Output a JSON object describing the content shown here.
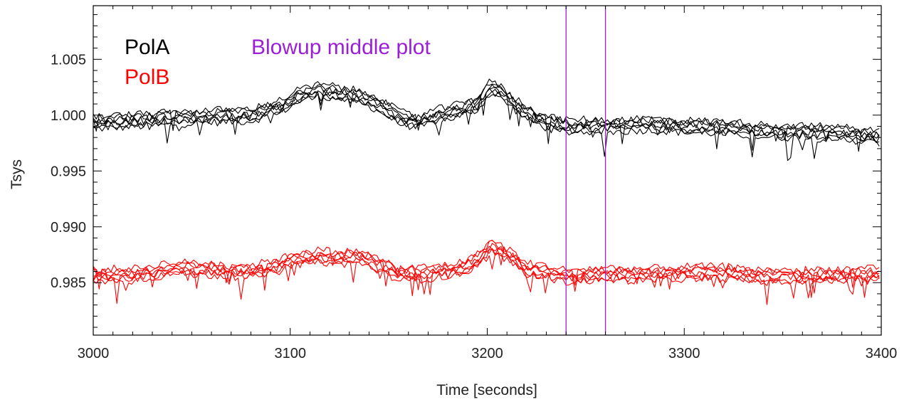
{
  "chart_data": {
    "type": "line",
    "xlabel": "Time [seconds]",
    "ylabel": "Tsys",
    "xlim": [
      3000,
      3400
    ],
    "ylim": [
      0.9803,
      1.0098
    ],
    "x_ticks": [
      3000,
      3100,
      3200,
      3300,
      3400
    ],
    "x_tick_labels": [
      "3000",
      "3100",
      "3200",
      "3300",
      "3400"
    ],
    "y_ticks": [
      0.985,
      0.99,
      0.995,
      1.0,
      1.005
    ],
    "y_tick_labels": [
      "0.985",
      "0.990",
      "0.995",
      "1.000",
      "1.005"
    ],
    "legend": [
      {
        "label": "PolA",
        "color": "#000000"
      },
      {
        "label": "PolB",
        "color": "#ff0000"
      }
    ],
    "annotation": {
      "text": "Blowup middle plot",
      "color": "#9b1fd6"
    },
    "vlines": [
      {
        "x": 3240,
        "color": "#9b1fd6"
      },
      {
        "x": 3260,
        "color": "#9b1fd6"
      }
    ],
    "series": [
      {
        "group": "PolA",
        "color": "#000000",
        "count": 7,
        "x": [
          3000,
          3020,
          3040,
          3060,
          3080,
          3095,
          3105,
          3115,
          3125,
          3135,
          3145,
          3155,
          3165,
          3175,
          3185,
          3195,
          3202,
          3210,
          3220,
          3230,
          3240,
          3250,
          3260,
          3280,
          3300,
          3320,
          3340,
          3360,
          3380,
          3400
        ],
        "values": [
          0.9993,
          0.9995,
          0.9997,
          0.9999,
          1.0,
          1.0008,
          1.0018,
          1.0022,
          1.002,
          1.0016,
          1.001,
          0.9998,
          0.9994,
          1.0,
          1.0004,
          1.001,
          1.0026,
          1.0016,
          1.0002,
          0.9994,
          0.999,
          0.9991,
          0.999,
          0.9992,
          0.999,
          0.9989,
          0.9986,
          0.9985,
          0.9984,
          0.998
        ]
      },
      {
        "group": "PolB",
        "color": "#ff0000",
        "count": 7,
        "x": [
          3000,
          3020,
          3040,
          3060,
          3080,
          3095,
          3105,
          3115,
          3125,
          3135,
          3145,
          3155,
          3165,
          3175,
          3185,
          3195,
          3202,
          3210,
          3220,
          3230,
          3240,
          3250,
          3260,
          3280,
          3300,
          3320,
          3340,
          3360,
          3380,
          3400
        ],
        "values": [
          0.9857,
          0.9857,
          0.9863,
          0.9862,
          0.986,
          0.9866,
          0.9872,
          0.9874,
          0.9872,
          0.9873,
          0.9866,
          0.9858,
          0.9858,
          0.986,
          0.9862,
          0.987,
          0.9882,
          0.9876,
          0.9862,
          0.986,
          0.9856,
          0.9857,
          0.9858,
          0.9857,
          0.9859,
          0.9859,
          0.9856,
          0.9856,
          0.9857,
          0.9857
        ]
      }
    ]
  }
}
